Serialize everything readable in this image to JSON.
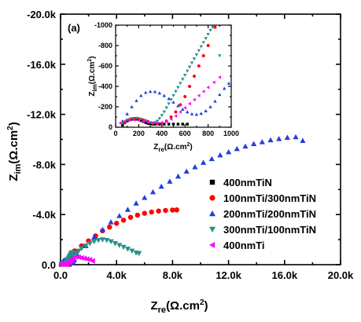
{
  "chart_data": {
    "type": "scatter",
    "panel_label": "(a)",
    "main": {
      "xlabel_main": "Z",
      "xlabel_sub": "re",
      "xlabel_unit": "(Ω.cm",
      "xlabel_sup": "2",
      "xlabel_close": ")",
      "ylabel_main": "Z",
      "ylabel_sub": "im",
      "ylabel_unit": "(Ω.cm",
      "ylabel_sup": "2",
      "ylabel_close": ")",
      "xlim": [
        0,
        20000
      ],
      "ylim": [
        0,
        -20000
      ],
      "xticks": [
        0,
        4000,
        8000,
        12000,
        16000,
        20000
      ],
      "xtick_labels": [
        "0.0",
        "4.0k",
        "8.0k",
        "12.0k",
        "16.0k",
        "20.0k"
      ],
      "yticks": [
        0,
        -4000,
        -8000,
        -12000,
        -16000,
        -20000
      ],
      "ytick_labels": [
        "0.0",
        "-4.0k",
        "-8.0k",
        "-12.0k",
        "-16.0k",
        "-20.0k"
      ]
    },
    "inset": {
      "xlabel_main": "Z",
      "xlabel_sub": "re",
      "xlabel_unit": "(Ω.cm",
      "xlabel_sup": "2",
      "xlabel_close": ")",
      "ylabel_main": "Z",
      "ylabel_sub": "im",
      "ylabel_unit": "(Ω.cm",
      "ylabel_sup": "2",
      "ylabel_close": ")",
      "xlim": [
        0,
        1000
      ],
      "ylim": [
        0,
        -1000
      ],
      "xticks": [
        0,
        200,
        400,
        600,
        800,
        1000
      ],
      "xtick_labels": [
        "0",
        "200",
        "400",
        "600",
        "800",
        "1000"
      ],
      "yticks": [
        0,
        -200,
        -400,
        -600,
        -800,
        -1000
      ],
      "ytick_labels": [
        "0",
        "-200",
        "-400",
        "-600",
        "-800",
        "-1000"
      ]
    },
    "legend_position": "bottom-right",
    "series": [
      {
        "name": "400nmTiN",
        "marker": "square",
        "color": "#000000",
        "x": [
          60,
          80,
          100,
          120,
          140,
          160,
          180,
          200,
          220,
          240,
          260,
          280,
          300,
          320,
          340,
          380,
          420,
          460,
          500,
          540,
          580,
          620
        ],
        "y": [
          -20,
          -45,
          -62,
          -72,
          -78,
          -80,
          -79,
          -74,
          -66,
          -56,
          -46,
          -38,
          -33,
          -30,
          -30,
          -30,
          -30,
          -30,
          -30,
          -30,
          -30,
          -30
        ],
        "inset_only": false
      },
      {
        "name": "100nmTi/300nmTiN",
        "marker": "circle",
        "color": "#ff0000",
        "x": [
          80,
          120,
          160,
          200,
          240,
          280,
          320,
          360,
          400,
          440,
          480,
          520,
          560,
          600,
          640,
          680,
          720,
          760,
          800,
          860,
          1000,
          1500,
          2000,
          2500,
          3000,
          3500,
          4000,
          4500,
          5000,
          5500,
          6000,
          6500,
          7000,
          7500,
          8000,
          8300
        ],
        "y": [
          -50,
          -75,
          -85,
          -82,
          -70,
          -55,
          -40,
          -35,
          -40,
          -60,
          -100,
          -150,
          -220,
          -300,
          -400,
          -500,
          -600,
          -700,
          -800,
          -980,
          -1100,
          -1500,
          -1900,
          -2300,
          -2700,
          -3000,
          -3300,
          -3550,
          -3780,
          -3950,
          -4100,
          -4200,
          -4280,
          -4330,
          -4360,
          -4370
        ]
      },
      {
        "name": "200nmTi/200nmTiN",
        "marker": "triangle-up",
        "color": "#1f3fe0",
        "x": [
          60,
          100,
          140,
          180,
          220,
          260,
          300,
          340,
          380,
          420,
          460,
          500,
          540,
          580,
          620,
          660,
          700,
          740,
          780,
          820,
          860,
          900,
          940,
          980,
          1200,
          1800,
          2400,
          3000,
          3600,
          4200,
          4800,
          5400,
          6000,
          6600,
          7200,
          7800,
          8400,
          9000,
          9600,
          10200,
          10800,
          11400,
          12000,
          12600,
          13200,
          13800,
          14400,
          15000,
          15600,
          16200,
          16800,
          17300
        ],
        "y": [
          -60,
          -130,
          -200,
          -260,
          -310,
          -340,
          -350,
          -348,
          -335,
          -310,
          -280,
          -245,
          -210,
          -175,
          -150,
          -130,
          -125,
          -135,
          -160,
          -200,
          -255,
          -320,
          -380,
          -430,
          -800,
          -1500,
          -2200,
          -2800,
          -3400,
          -3900,
          -4400,
          -4900,
          -5350,
          -5800,
          -6250,
          -6650,
          -7050,
          -7450,
          -7800,
          -8150,
          -8450,
          -8750,
          -9000,
          -9250,
          -9450,
          -9650,
          -9800,
          -9950,
          -10050,
          -10150,
          -10200,
          -9900
        ]
      },
      {
        "name": "300nmTi/100nmTiN",
        "marker": "triangle-down",
        "color": "#2a8f8a",
        "x": [
          60,
          100,
          140,
          180,
          220,
          260,
          300,
          320,
          340,
          360,
          380,
          400,
          420,
          440,
          460,
          480,
          500,
          520,
          540,
          560,
          580,
          600,
          620,
          640,
          660,
          680,
          700,
          720,
          740,
          760,
          780,
          800,
          820,
          840,
          900,
          1100,
          1300,
          1500,
          1800,
          2100,
          2400,
          2700,
          3000,
          3300,
          3600,
          3900,
          4200,
          4500,
          4800,
          5100,
          5400,
          5600
        ],
        "y": [
          -40,
          -70,
          -85,
          -88,
          -80,
          -65,
          -45,
          -40,
          -45,
          -60,
          -85,
          -115,
          -150,
          -190,
          -230,
          -270,
          -310,
          -350,
          -390,
          -430,
          -470,
          -510,
          -550,
          -590,
          -630,
          -670,
          -710,
          -750,
          -790,
          -830,
          -870,
          -910,
          -950,
          -980,
          -700,
          -900,
          -1100,
          -1300,
          -1500,
          -1700,
          -1850,
          -1950,
          -2000,
          -1950,
          -1850,
          -1700,
          -1550,
          -1400,
          -1250,
          -1100,
          -950,
          -900
        ]
      },
      {
        "name": "400nmTi",
        "marker": "triangle-left",
        "color": "#ff00ff",
        "x": [
          40,
          80,
          120,
          160,
          200,
          240,
          280,
          320,
          360,
          400,
          440,
          480,
          520,
          560,
          600,
          640,
          680,
          720,
          760,
          800,
          850,
          900,
          1100,
          1300,
          1500,
          1700,
          1900,
          2100,
          2300
        ],
        "y": [
          -40,
          -60,
          -70,
          -72,
          -68,
          -58,
          -48,
          -42,
          -40,
          -45,
          -60,
          -80,
          -110,
          -150,
          -190,
          -230,
          -270,
          -310,
          -350,
          -390,
          -440,
          -490,
          -620,
          -600,
          -550,
          -500,
          -450,
          -400,
          -300
        ]
      }
    ]
  }
}
